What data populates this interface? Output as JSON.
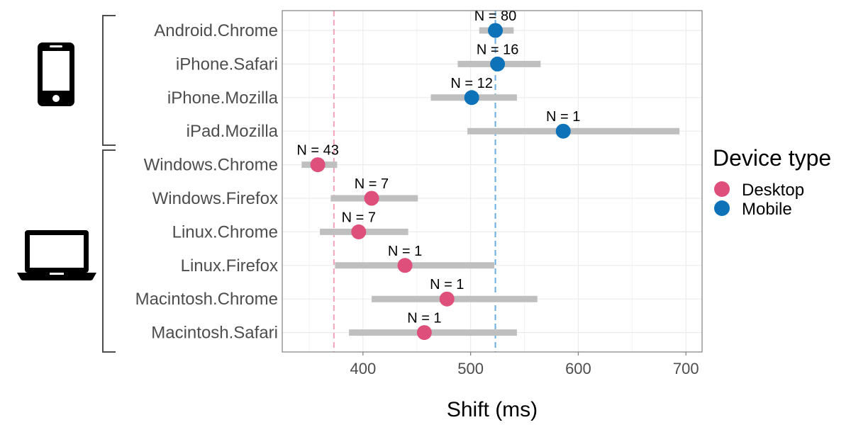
{
  "chart_data": {
    "type": "dot-range",
    "xlabel": "Shift (ms)",
    "xlim": [
      325,
      715
    ],
    "xticks": [
      400,
      500,
      600,
      700
    ],
    "grid": true,
    "categories": [
      "Android.Chrome",
      "iPhone.Safari",
      "iPhone.Mozilla",
      "iPad.Mozilla",
      "Windows.Chrome",
      "Windows.Firefox",
      "Linux.Chrome",
      "Linux.Firefox",
      "Macintosh.Chrome",
      "Macintosh.Safari"
    ],
    "points": [
      {
        "label": "Android.Chrome",
        "group": "Mobile",
        "value": 523,
        "low": 508,
        "high": 540,
        "n": "N = 80"
      },
      {
        "label": "iPhone.Safari",
        "group": "Mobile",
        "value": 525,
        "low": 488,
        "high": 565,
        "n": "N = 16"
      },
      {
        "label": "iPhone.Mozilla",
        "group": "Mobile",
        "value": 501,
        "low": 463,
        "high": 543,
        "n": "N = 12"
      },
      {
        "label": "iPad.Mozilla",
        "group": "Mobile",
        "value": 586,
        "low": 497,
        "high": 694,
        "n": "N = 1"
      },
      {
        "label": "Windows.Chrome",
        "group": "Desktop",
        "value": 358,
        "low": 343,
        "high": 376,
        "n": "N = 43"
      },
      {
        "label": "Windows.Firefox",
        "group": "Desktop",
        "value": 408,
        "low": 370,
        "high": 451,
        "n": "N = 7"
      },
      {
        "label": "Linux.Chrome",
        "group": "Desktop",
        "value": 396,
        "low": 360,
        "high": 442,
        "n": "N = 7"
      },
      {
        "label": "Linux.Firefox",
        "group": "Desktop",
        "value": 439,
        "low": 374,
        "high": 522,
        "n": "N = 1"
      },
      {
        "label": "Macintosh.Chrome",
        "group": "Desktop",
        "value": 478,
        "low": 408,
        "high": 562,
        "n": "N = 1"
      },
      {
        "label": "Macintosh.Safari",
        "group": "Desktop",
        "value": 457,
        "low": 387,
        "high": 543,
        "n": "N = 1"
      }
    ],
    "reference_lines": [
      {
        "group": "Desktop",
        "value": 373
      },
      {
        "group": "Mobile",
        "value": 523
      }
    ],
    "legend": {
      "title": "Device type",
      "position": "right",
      "entries": [
        {
          "label": "Desktop",
          "color": "#de4f7b"
        },
        {
          "label": "Mobile",
          "color": "#0e72b9"
        }
      ]
    },
    "side_icons": [
      "smartphone-icon",
      "laptop-icon"
    ]
  },
  "colors": {
    "desktop": "#de4f7b",
    "mobile": "#0e72b9",
    "desktop_ref": "#f2a3b9",
    "mobile_ref": "#6aaee0",
    "interval": "#bfbfbf",
    "grid": "#ebebeb",
    "panel_border": "#7f7f7f"
  }
}
